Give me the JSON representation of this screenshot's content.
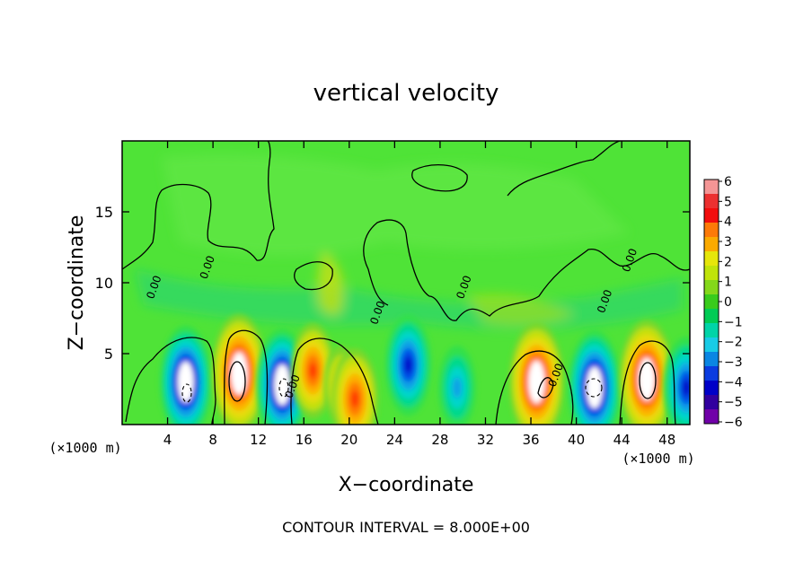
{
  "chart_data": {
    "type": "heatmap",
    "title": "vertical velocity",
    "xlabel": "X−coordinate",
    "ylabel": "Z−coordinate",
    "x_unit_left": "(×1000 m)",
    "x_unit_right": "(×1000 m)",
    "footer": "CONTOUR INTERVAL = 8.000E+00",
    "xlim": [
      0,
      50
    ],
    "ylim": [
      0,
      20
    ],
    "x_ticks": [
      "4",
      "8",
      "12",
      "16",
      "20",
      "24",
      "28",
      "32",
      "36",
      "40",
      "44",
      "48"
    ],
    "x_tick_values": [
      4,
      8,
      12,
      16,
      20,
      24,
      28,
      32,
      36,
      40,
      44,
      48
    ],
    "y_ticks": [
      "5",
      "10",
      "15"
    ],
    "y_tick_values": [
      5,
      10,
      15
    ],
    "contour_labels": [
      {
        "x": 3.1,
        "z": 9.6,
        "text": "0.00"
      },
      {
        "x": 7.8,
        "z": 11.0,
        "text": "0.00"
      },
      {
        "x": 15.3,
        "z": 2.6,
        "text": "0.00"
      },
      {
        "x": 22.8,
        "z": 7.8,
        "text": "0.00"
      },
      {
        "x": 30.4,
        "z": 9.6,
        "text": "0.00"
      },
      {
        "x": 38.5,
        "z": 3.4,
        "text": "0.00"
      },
      {
        "x": 42.8,
        "z": 8.6,
        "text": "0.00"
      },
      {
        "x": 45.0,
        "z": 11.5,
        "text": "0.00"
      }
    ],
    "features": [
      {
        "x": 5.6,
        "z": 3.0,
        "w": -6.0
      },
      {
        "x": 10.3,
        "z": 3.6,
        "w": 6.5
      },
      {
        "x": 14.1,
        "z": 2.8,
        "w": -6.0
      },
      {
        "x": 16.8,
        "z": 3.8,
        "w": 4.5
      },
      {
        "x": 19.3,
        "z": 2.8,
        "w": 3.0
      },
      {
        "x": 20.5,
        "z": 1.8,
        "w": 5.0
      },
      {
        "x": 25.2,
        "z": 4.2,
        "w": -5.0
      },
      {
        "x": 29.5,
        "z": 2.6,
        "w": -3.5
      },
      {
        "x": 36.5,
        "z": 3.0,
        "w": 6.5
      },
      {
        "x": 41.6,
        "z": 2.6,
        "w": -6.2
      },
      {
        "x": 46.2,
        "z": 3.2,
        "w": 6.5
      },
      {
        "x": 49.7,
        "z": 2.6,
        "w": -5.0
      }
    ],
    "colorbar": {
      "ticks": [
        "6",
        "5",
        "4",
        "3",
        "2",
        "1",
        "0",
        "−1",
        "−2",
        "−3",
        "−4",
        "−5",
        "−6"
      ],
      "colors": [
        "#f49595",
        "#ec3030",
        "#f20d0d",
        "#fd7a08",
        "#fbaa00",
        "#e6e60a",
        "#c0e40a",
        "#84d81a",
        "#39cc1c",
        "#00cc55",
        "#00d4a8",
        "#18cbe6",
        "#0a86e3",
        "#0a3ce0",
        "#0000c8",
        "#32009f",
        "#7000a8"
      ]
    },
    "field_colors": {
      "background_green": "#4fe337",
      "neg_stops": [
        "#32e04b",
        "#06d98a",
        "#00d6ca",
        "#10a2e6",
        "#0050e6",
        "#0000c8",
        "#22008e",
        "#6b00a2"
      ],
      "pos_stops": [
        "#7ad82a",
        "#c4e00c",
        "#e8dc0a",
        "#fdb000",
        "#ff7a00",
        "#ff3500",
        "#ef0a0a",
        "#f5a8a8"
      ],
      "core": "#ffffff"
    }
  }
}
